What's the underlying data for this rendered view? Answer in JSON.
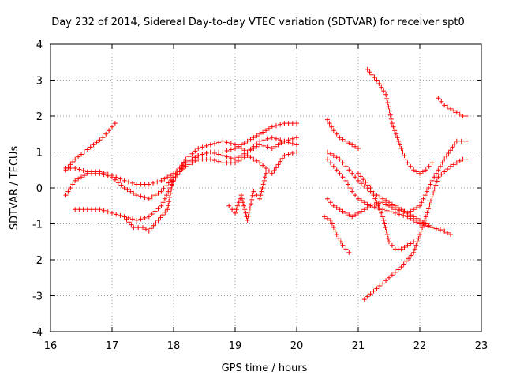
{
  "chart_data": {
    "type": "scatter",
    "title": "Day 232 of 2014, Sidereal Day-to-day VTEC variation (SDTVAR) for receiver spt0",
    "xlabel": "GPS time / hours",
    "ylabel": "SDTVAR / TECUs",
    "xlim": [
      16,
      23
    ],
    "ylim": [
      -4,
      4
    ],
    "xticks": [
      "16",
      "17",
      "18",
      "19",
      "20",
      "21",
      "22",
      "23"
    ],
    "yticks": [
      "4",
      "3",
      "2",
      "1",
      "0",
      "-1",
      "-2",
      "-3",
      "-4"
    ],
    "grid": true,
    "marker": "+",
    "color": "#ff0000",
    "series": [
      {
        "name": "s1",
        "x": [
          16.25,
          16.4,
          16.55,
          16.7,
          16.85,
          16.95,
          17.05
        ],
        "y": [
          0.5,
          0.8,
          1.0,
          1.2,
          1.4,
          1.6,
          1.8
        ]
      },
      {
        "name": "s2",
        "x": [
          16.25,
          16.4,
          16.6,
          16.8,
          17.0,
          17.2,
          17.4,
          17.6,
          17.8,
          18.0,
          18.2,
          18.4,
          18.6,
          18.8,
          19.0,
          19.2,
          19.4,
          19.6,
          19.8,
          20.0
        ],
        "y": [
          0.55,
          0.55,
          0.45,
          0.45,
          0.35,
          0.2,
          0.1,
          0.1,
          0.2,
          0.4,
          0.7,
          0.9,
          1.0,
          1.0,
          1.1,
          1.3,
          1.5,
          1.7,
          1.8,
          1.8
        ]
      },
      {
        "name": "s3",
        "x": [
          16.25,
          16.4,
          16.6,
          16.8,
          17.0,
          17.2,
          17.4,
          17.6,
          17.8,
          18.0,
          18.2,
          18.4,
          18.6,
          18.8,
          19.0,
          19.2,
          19.4,
          19.6,
          19.8,
          20.0
        ],
        "y": [
          -0.2,
          0.2,
          0.4,
          0.4,
          0.3,
          0.0,
          -0.2,
          -0.3,
          -0.1,
          0.3,
          0.8,
          1.1,
          1.2,
          1.3,
          1.2,
          1.0,
          1.3,
          1.4,
          1.3,
          1.2
        ]
      },
      {
        "name": "s4",
        "x": [
          16.4,
          16.6,
          16.8,
          17.0,
          17.2,
          17.4,
          17.6,
          17.8,
          18.0,
          18.2,
          18.4,
          18.6,
          18.8,
          19.0,
          19.2,
          19.4,
          19.6,
          19.8,
          20.0
        ],
        "y": [
          -0.6,
          -0.6,
          -0.6,
          -0.7,
          -0.8,
          -0.9,
          -0.8,
          -0.5,
          0.2,
          0.7,
          0.9,
          1.0,
          0.9,
          0.8,
          1.0,
          1.2,
          1.1,
          1.3,
          1.4
        ]
      },
      {
        "name": "s5",
        "x": [
          17.2,
          17.35,
          17.5,
          17.6,
          17.75,
          17.9,
          18.0,
          18.2,
          18.4,
          18.6,
          18.8,
          19.0,
          19.2,
          19.4,
          19.6,
          19.8,
          20.0
        ],
        "y": [
          -0.8,
          -1.1,
          -1.1,
          -1.2,
          -0.9,
          -0.6,
          0.3,
          0.6,
          0.8,
          0.8,
          0.7,
          0.7,
          0.9,
          0.7,
          0.4,
          0.9,
          1.0
        ]
      },
      {
        "name": "s6",
        "x": [
          18.9,
          19.0,
          19.1,
          19.2,
          19.3,
          19.4,
          19.5
        ],
        "y": [
          -0.5,
          -0.7,
          -0.2,
          -0.9,
          -0.1,
          -0.3,
          0.4
        ]
      },
      {
        "name": "s7",
        "x": [
          20.5,
          20.6,
          20.7,
          20.8,
          20.9,
          21.0
        ],
        "y": [
          1.9,
          1.6,
          1.4,
          1.3,
          1.2,
          1.1
        ]
      },
      {
        "name": "s8",
        "x": [
          20.5,
          20.6,
          20.7,
          20.8,
          20.9,
          21.0,
          21.2,
          21.4,
          21.6,
          21.8,
          22.0,
          22.2,
          22.4,
          22.5
        ],
        "y": [
          1.0,
          0.9,
          0.8,
          0.6,
          0.4,
          0.2,
          -0.1,
          -0.3,
          -0.5,
          -0.7,
          -0.9,
          -1.1,
          -1.2,
          -1.3
        ]
      },
      {
        "name": "s9",
        "x": [
          20.5,
          20.6,
          20.7,
          20.8,
          20.9,
          21.0,
          21.2,
          21.4,
          21.6,
          21.8,
          22.0,
          22.2,
          22.4
        ],
        "y": [
          0.8,
          0.6,
          0.4,
          0.2,
          -0.1,
          -0.3,
          -0.5,
          -0.6,
          -0.7,
          -0.8,
          -1.0,
          -1.1,
          -1.2
        ]
      },
      {
        "name": "s10",
        "x": [
          20.5,
          20.6,
          20.7,
          20.8,
          20.9,
          21.0,
          21.2,
          21.4,
          21.6,
          21.8,
          22.0,
          22.2,
          22.4,
          22.6,
          22.75
        ],
        "y": [
          -0.3,
          -0.5,
          -0.6,
          -0.7,
          -0.8,
          -0.7,
          -0.5,
          -0.4,
          -0.6,
          -0.7,
          -0.5,
          0.2,
          0.8,
          1.3,
          1.3
        ]
      },
      {
        "name": "s11",
        "x": [
          20.45,
          20.55,
          20.65,
          20.75,
          20.85
        ],
        "y": [
          -0.8,
          -0.9,
          -1.3,
          -1.6,
          -1.8
        ]
      },
      {
        "name": "s12",
        "x": [
          21.15,
          21.3,
          21.45,
          21.55,
          21.7,
          21.8,
          21.9,
          22.0,
          22.1,
          22.2
        ],
        "y": [
          3.3,
          3.0,
          2.6,
          1.8,
          1.1,
          0.7,
          0.5,
          0.4,
          0.5,
          0.7
        ]
      },
      {
        "name": "s13",
        "x": [
          21.1,
          21.3,
          21.5,
          21.7,
          21.9,
          22.1,
          22.3,
          22.5,
          22.7,
          22.75
        ],
        "y": [
          -3.1,
          -2.8,
          -2.5,
          -2.2,
          -1.8,
          -0.8,
          0.3,
          0.6,
          0.8,
          0.8
        ]
      },
      {
        "name": "s14",
        "x": [
          21.0,
          21.2,
          21.4,
          21.5,
          21.6,
          21.7,
          21.8,
          21.9
        ],
        "y": [
          0.4,
          0.0,
          -0.8,
          -1.5,
          -1.7,
          -1.7,
          -1.6,
          -1.5
        ]
      },
      {
        "name": "s15",
        "x": [
          22.3,
          22.4,
          22.5,
          22.6,
          22.7,
          22.75
        ],
        "y": [
          2.5,
          2.3,
          2.2,
          2.1,
          2.0,
          2.0
        ]
      }
    ]
  }
}
